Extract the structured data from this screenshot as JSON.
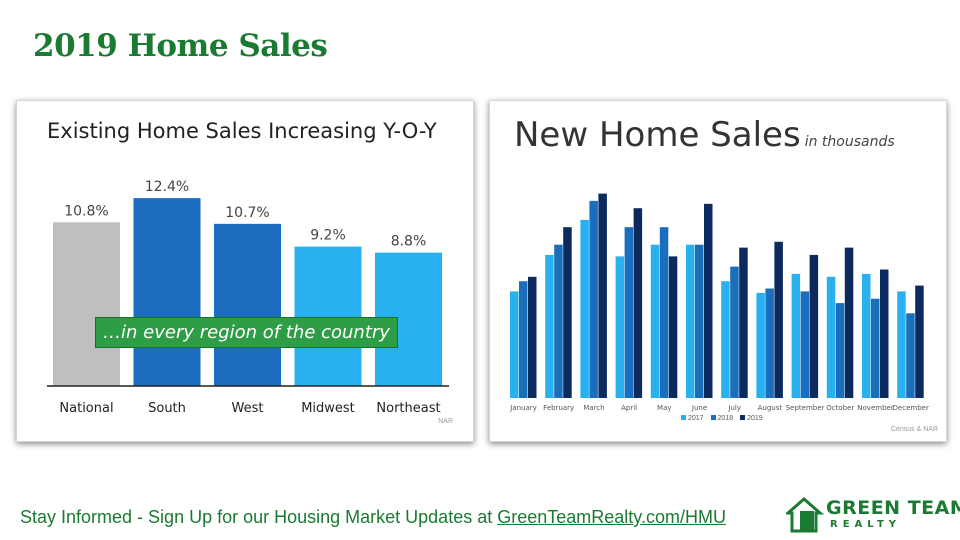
{
  "title": "2019 Home Sales",
  "colors": {
    "brand_green": "#1b7a32",
    "national": "#bfbfbf",
    "south": "#1a6ebd",
    "west": "#1a6ebd",
    "midwest": "#29b0ee",
    "northeast": "#29b0ee",
    "s2017": "#29b0ee",
    "s2018": "#1a6ebd",
    "s2019": "#0d2a5e"
  },
  "left_chart": {
    "title": "Existing Home Sales Increasing Y-O-Y",
    "banner": "…in every region of the country",
    "source": "NAR"
  },
  "right_chart": {
    "title": "New Home Sales",
    "subtitle": "in thousands",
    "source": "Census & NAR"
  },
  "footer": {
    "text": "Stay Informed - Sign Up for our Housing Market Updates at ",
    "link": "GreenTeamRealty.com/HMU"
  },
  "logo": {
    "line1": "GREEN TEAM",
    "line2": "REALTY"
  },
  "chart_data": [
    {
      "type": "bar",
      "title": "Existing Home Sales Increasing Y-O-Y",
      "categories": [
        "National",
        "South",
        "West",
        "Midwest",
        "Northeast"
      ],
      "values": [
        10.8,
        12.4,
        10.7,
        9.2,
        8.8
      ],
      "labels": [
        "10.8%",
        "12.4%",
        "10.7%",
        "9.2%",
        "8.8%"
      ],
      "ylim": [
        0,
        13
      ],
      "grid": false
    },
    {
      "type": "bar",
      "title": "New Home Sales",
      "subtitle": "in thousands",
      "categories": [
        "January",
        "February",
        "March",
        "April",
        "May",
        "June",
        "July",
        "August",
        "September",
        "October",
        "November",
        "December"
      ],
      "series": [
        {
          "name": "2017",
          "values": [
            593,
            618,
            642,
            617,
            625,
            625,
            600,
            592,
            605,
            603,
            605,
            593
          ]
        },
        {
          "name": "2018",
          "values": [
            600,
            625,
            655,
            637,
            637,
            625,
            610,
            595,
            593,
            585,
            588,
            578
          ]
        },
        {
          "name": "2019",
          "values": [
            603,
            637,
            660,
            650,
            617,
            653,
            623,
            627,
            618,
            623,
            608,
            597
          ]
        }
      ],
      "ylim": [
        520,
        670
      ],
      "grid": false,
      "legend_position": "bottom"
    }
  ]
}
